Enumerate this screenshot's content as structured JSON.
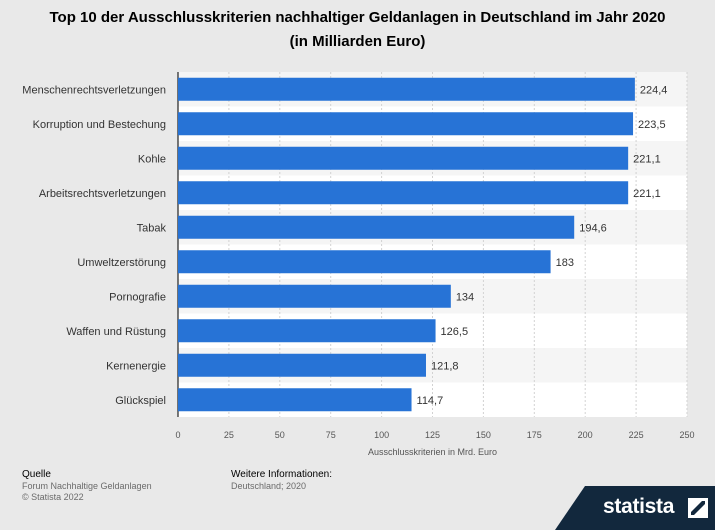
{
  "chart_data": {
    "type": "bar",
    "orientation": "horizontal",
    "title": "Top 10 der Ausschlusskriterien nachhaltiger Geldanlagen in Deutschland im Jahr 2020 (in Milliarden Euro)",
    "categories": [
      "Menschenrechtsverletzungen",
      "Korruption und Bestechung",
      "Kohle",
      "Arbeitsrechtsverletzungen",
      "Tabak",
      "Umweltzerstörung",
      "Pornografie",
      "Waffen und Rüstung",
      "Kernenergie",
      "Glückspiel"
    ],
    "values": [
      224.4,
      223.5,
      221.1,
      221.1,
      194.6,
      183,
      134,
      126.5,
      121.8,
      114.7
    ],
    "value_labels": [
      "224,4",
      "223,5",
      "221,1",
      "221,1",
      "194,6",
      "183",
      "134",
      "126,5",
      "121,8",
      "114,7"
    ],
    "xlabel": "Ausschlusskriterien in Mrd. Euro",
    "ylabel": "",
    "xlim": [
      0,
      250
    ],
    "xticks": [
      0,
      25,
      50,
      75,
      100,
      125,
      150,
      175,
      200,
      225,
      250
    ],
    "grid": true,
    "bar_color": "#2773d6"
  },
  "footer": {
    "source_heading": "Quelle",
    "source_lines": [
      "Forum Nachhaltige Geldanlagen",
      "© Statista 2022"
    ],
    "info_heading": "Weitere Informationen:",
    "info_lines": [
      "Deutschland; 2020"
    ]
  },
  "brand": {
    "name": "statista",
    "mark_icon": "statista-logo-icon"
  }
}
